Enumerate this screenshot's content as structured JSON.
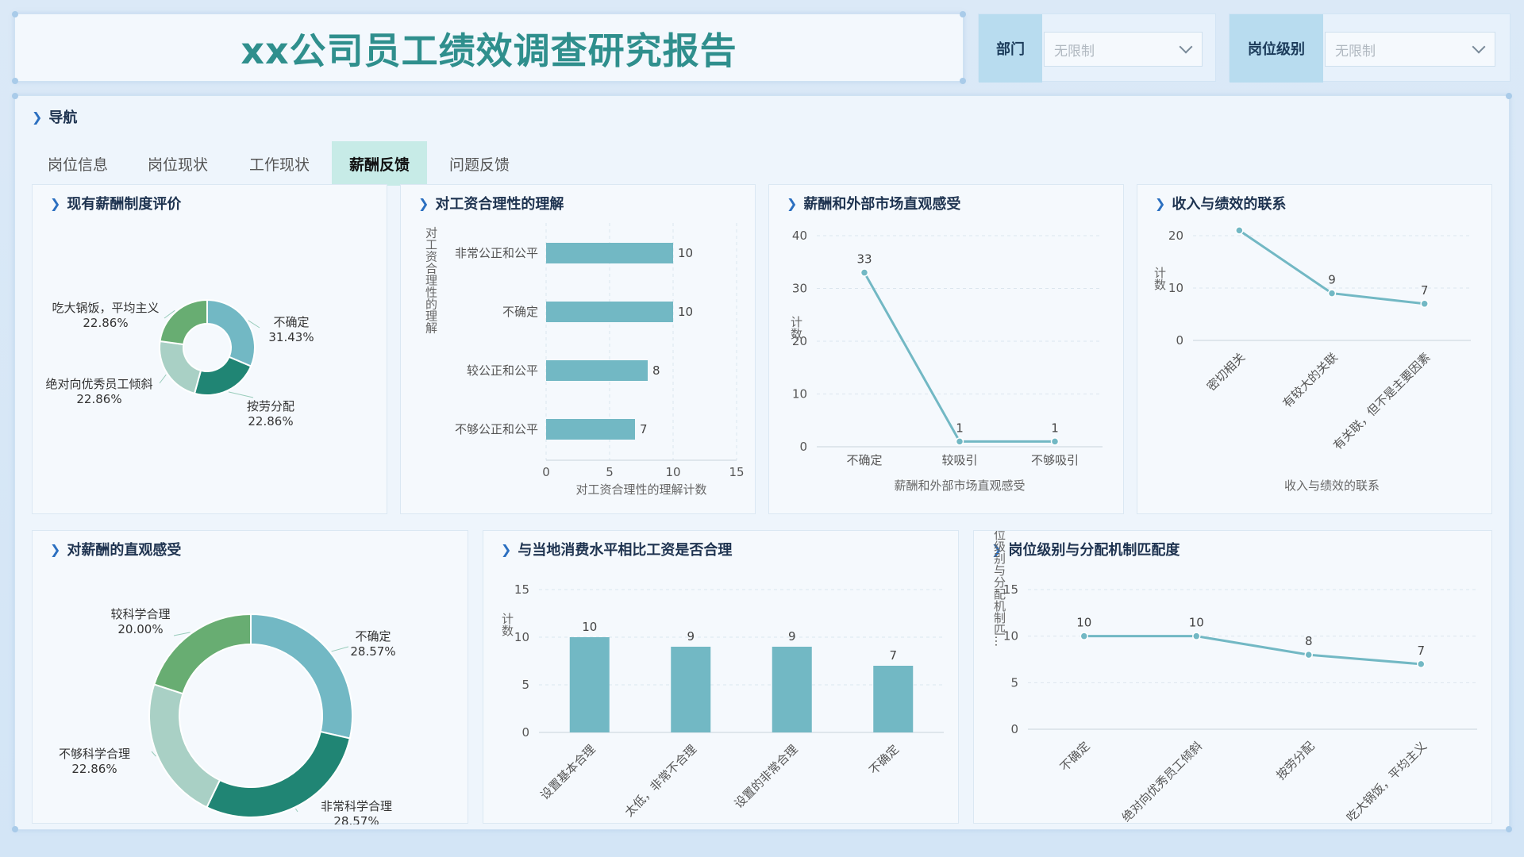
{
  "header": {
    "title": "xx公司员工绩效调查研究报告"
  },
  "filters": [
    {
      "label": "部门",
      "value": "无限制"
    },
    {
      "label": "岗位级别",
      "value": "无限制"
    }
  ],
  "nav": {
    "title": "导航",
    "tabs": [
      "岗位信息",
      "岗位现状",
      "工作现状",
      "薪酬反馈",
      "问题反馈"
    ],
    "active_index": 3
  },
  "colors": {
    "bar": "#72b8c4",
    "line": "#72b8c4",
    "donut": [
      "#72b8c4",
      "#208574",
      "#a9d0c5",
      "#68ad72"
    ]
  },
  "chart_data": [
    {
      "id": "c1",
      "type": "pie",
      "title": "现有薪酬制度评价",
      "slices": [
        {
          "label": "不确定",
          "pct": "31.43%",
          "value": 31.43
        },
        {
          "label": "按劳分配",
          "pct": "22.86%",
          "value": 22.86
        },
        {
          "label": "绝对向优秀员工倾斜",
          "pct": "22.86%",
          "value": 22.86
        },
        {
          "label": "吃大锅饭，平均主义",
          "pct": "22.86%",
          "value": 22.86
        }
      ]
    },
    {
      "id": "c2",
      "type": "bar",
      "orientation": "horizontal",
      "title": "对工资合理性的理解",
      "categories": [
        "非常公正和公平",
        "不确定",
        "较公正和公平",
        "不够公正和公平"
      ],
      "values": [
        10,
        10,
        8,
        7
      ],
      "xlabel": "对工资合理性的理解计数",
      "ylabel": "对工资合理性的理解",
      "xlim": [
        0,
        15
      ],
      "xticks": [
        0,
        5,
        10,
        15
      ]
    },
    {
      "id": "c3",
      "type": "line",
      "title": "薪酬和外部市场直观感受",
      "categories": [
        "不确定",
        "较吸引",
        "不够吸引"
      ],
      "values": [
        33,
        1,
        1
      ],
      "xlabel": "薪酬和外部市场直观感受",
      "ylabel": "计数",
      "ylim": [
        0,
        40
      ],
      "yticks": [
        0,
        10,
        20,
        30,
        40
      ]
    },
    {
      "id": "c4",
      "type": "line",
      "title": "收入与绩效的联系",
      "categories": [
        "密切相关",
        "有较大的关联",
        "有关联，但不是主要因素"
      ],
      "values": [
        21,
        9,
        7
      ],
      "labels": [
        "",
        "9",
        "7"
      ],
      "xlabel": "收入与绩效的联系",
      "ylabel": "计数",
      "ylim": [
        0,
        20
      ],
      "yticks": [
        0,
        10,
        20
      ]
    },
    {
      "id": "c5",
      "type": "pie",
      "title": "对薪酬的直观感受",
      "slices": [
        {
          "label": "不确定",
          "pct": "28.57%",
          "value": 28.57
        },
        {
          "label": "非常科学合理",
          "pct": "28.57%",
          "value": 28.57
        },
        {
          "label": "不够科学合理",
          "pct": "22.86%",
          "value": 22.86
        },
        {
          "label": "较科学合理",
          "pct": "20.00%",
          "value": 20.0
        }
      ]
    },
    {
      "id": "c6",
      "type": "bar",
      "title": "与当地消费水平相比工资是否合理",
      "categories": [
        "设置基本合理",
        "太低，非常不合理",
        "设置的非常合理",
        "不确定"
      ],
      "values": [
        10,
        9,
        9,
        7
      ],
      "ylabel": "计数",
      "ylim": [
        0,
        15
      ],
      "yticks": [
        0,
        5,
        10,
        15
      ]
    },
    {
      "id": "c7",
      "type": "line",
      "title": "岗位级别与分配机制匹配度",
      "categories": [
        "不确定",
        "绝对向优秀员工倾斜",
        "按劳分配",
        "吃大锅饭，平均主义"
      ],
      "values": [
        10,
        10,
        8,
        7
      ],
      "ylabel": "岗位级别与分配机制匹...",
      "ylim": [
        0,
        15
      ],
      "yticks": [
        0,
        5,
        10,
        15
      ]
    }
  ]
}
